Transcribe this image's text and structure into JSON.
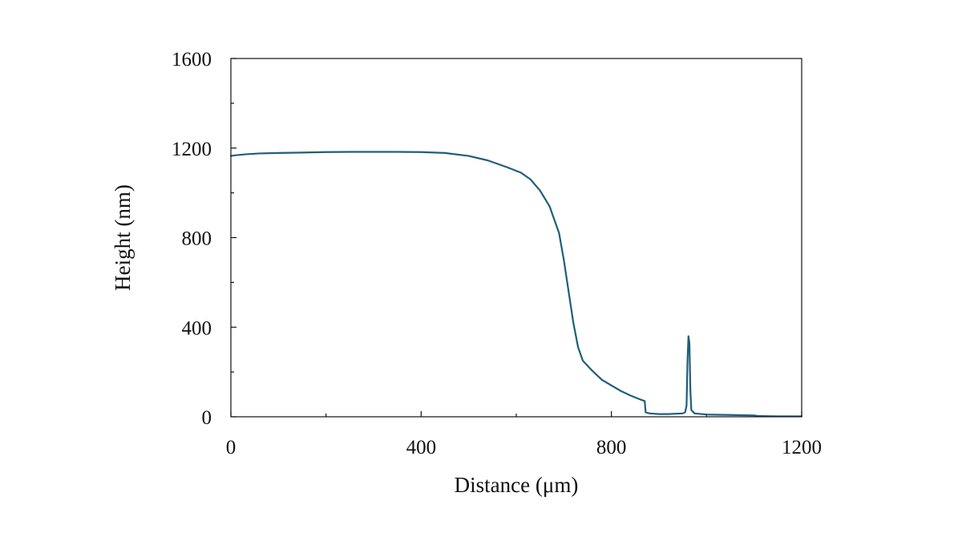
{
  "chart_data": {
    "type": "line",
    "title": "",
    "xlabel": "Distance (μm)",
    "ylabel": "Height (nm)",
    "xlim": [
      0,
      1200
    ],
    "ylim": [
      0,
      1600
    ],
    "x_ticks": [
      0,
      400,
      800,
      1200
    ],
    "y_ticks": [
      0,
      400,
      800,
      1200,
      1600
    ],
    "x_minor_step": 200,
    "y_minor_step": 200,
    "grid": false,
    "line_color": "#1f5f7a",
    "series": [
      {
        "x": [
          0,
          10,
          30,
          60,
          100,
          150,
          200,
          250,
          300,
          350,
          400,
          450,
          500,
          540,
          580,
          610,
          630,
          650,
          670,
          690,
          700,
          710,
          720,
          730,
          740,
          760,
          780,
          800,
          820,
          840,
          860,
          870,
          872,
          880,
          900,
          920,
          950,
          955,
          958,
          960,
          962,
          964,
          966,
          968,
          975,
          1000,
          1050,
          1100,
          1110,
          1150,
          1200
        ],
        "y": [
          1165,
          1168,
          1172,
          1176,
          1178,
          1180,
          1182,
          1183,
          1183,
          1183,
          1182,
          1178,
          1165,
          1145,
          1115,
          1090,
          1060,
          1010,
          940,
          820,
          700,
          560,
          420,
          310,
          250,
          205,
          165,
          140,
          115,
          95,
          78,
          70,
          20,
          15,
          12,
          12,
          15,
          20,
          50,
          250,
          360,
          330,
          120,
          30,
          15,
          10,
          8,
          6,
          3,
          2,
          2
        ]
      }
    ]
  }
}
